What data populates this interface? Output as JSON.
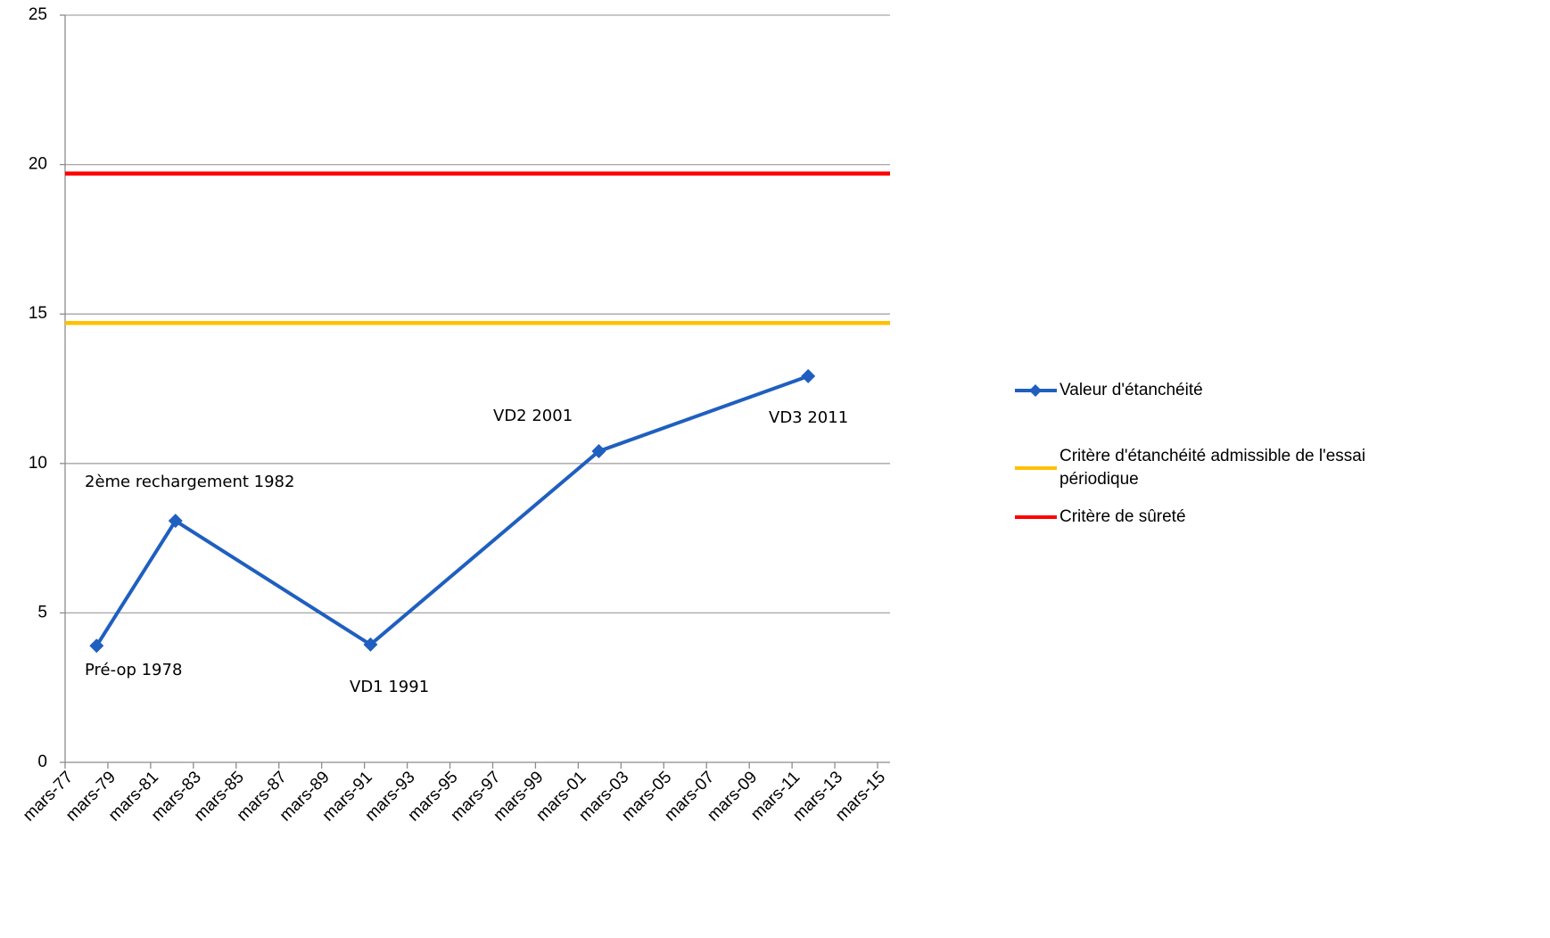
{
  "chart_data": {
    "type": "line",
    "xlim": [
      1977.167,
      2015.75
    ],
    "xticks": [
      {
        "value": 1977.167,
        "label": "mars-77"
      },
      {
        "value": 1979.167,
        "label": "mars-79"
      },
      {
        "value": 1981.167,
        "label": "mars-81"
      },
      {
        "value": 1983.167,
        "label": "mars-83"
      },
      {
        "value": 1985.167,
        "label": "mars-85"
      },
      {
        "value": 1987.167,
        "label": "mars-87"
      },
      {
        "value": 1989.167,
        "label": "mars-89"
      },
      {
        "value": 1991.167,
        "label": "mars-91"
      },
      {
        "value": 1993.167,
        "label": "mars-93"
      },
      {
        "value": 1995.167,
        "label": "mars-95"
      },
      {
        "value": 1997.167,
        "label": "mars-97"
      },
      {
        "value": 1999.167,
        "label": "mars-99"
      },
      {
        "value": 2001.167,
        "label": "mars-01"
      },
      {
        "value": 2003.167,
        "label": "mars-03"
      },
      {
        "value": 2005.167,
        "label": "mars-05"
      },
      {
        "value": 2007.167,
        "label": "mars-07"
      },
      {
        "value": 2009.167,
        "label": "mars-09"
      },
      {
        "value": 2011.167,
        "label": "mars-11"
      },
      {
        "value": 2013.167,
        "label": "mars-13"
      },
      {
        "value": 2015.167,
        "label": "mars-15"
      }
    ],
    "ylim": [
      0,
      25
    ],
    "yticks": [
      0,
      5,
      10,
      15,
      20,
      25
    ],
    "grid": true,
    "series": [
      {
        "name": "Valeur d'étanchéité",
        "color": "#1f5fbf",
        "marker": "diamond",
        "x": [
          1978.64,
          1982.33,
          1991.45,
          2002.13,
          2011.92
        ],
        "values": [
          3.9,
          8.08,
          3.94,
          10.41,
          12.92
        ]
      },
      {
        "name": "Critère d'étanchéité admissible de l'essai périodique",
        "color": "#ffc000",
        "x": [
          1977.167,
          2015.75
        ],
        "values": [
          14.7,
          14.7
        ]
      },
      {
        "name": "Critère de sûreté",
        "color": "#ff0000",
        "x": [
          1977.167,
          2015.75
        ],
        "values": [
          19.7,
          19.7
        ]
      }
    ],
    "annotations": [
      "Pré-op 1978",
      "2ème rechargement 1982",
      "VD1 1991",
      "VD2 2001",
      "VD3 2011"
    ]
  }
}
